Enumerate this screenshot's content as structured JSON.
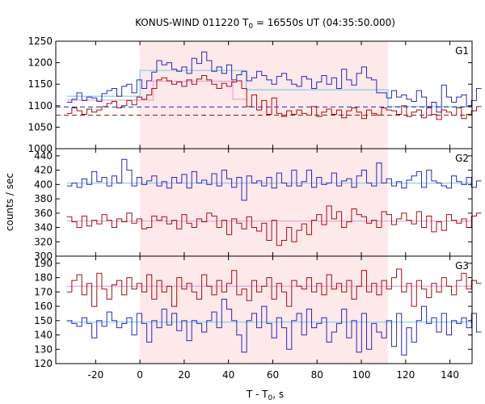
{
  "chart_data": {
    "type": "line",
    "title": "KONUS-WIND 011220 T",
    "title_sub": "0",
    "title_rest": " = 16550s UT (04:35:50.000)",
    "xlabel": "T - T",
    "xlabel_sub": "0",
    "xlabel_rest": ", s",
    "ylabel": "counts / sec",
    "xlim": [
      -38,
      150
    ],
    "xticks": [
      -20,
      0,
      20,
      40,
      60,
      80,
      100,
      120,
      140
    ],
    "highlight": {
      "x0": 0,
      "x1": 112
    },
    "colors": {
      "blue": "#2a2ab4",
      "red": "#a01010",
      "cyan": "#7fd0e8",
      "pink": "#f0a0d8",
      "shade": "#fde8ea"
    },
    "panels": [
      {
        "name": "G1",
        "ylim": [
          1000,
          1250
        ],
        "yticks": [
          1000,
          1050,
          1100,
          1150,
          1200,
          1250
        ],
        "blue_dashed_level": 1097,
        "red_dashed_level": 1078,
        "cyan_steps": [
          [
            -33,
            1122
          ],
          [
            0,
            1182
          ],
          [
            48,
            1137
          ],
          [
            112,
            1098
          ],
          [
            150,
            1098
          ]
        ],
        "pink_steps": [
          [
            -33,
            1113
          ],
          [
            6,
            1157
          ],
          [
            42,
            1115
          ],
          [
            44,
            1115
          ],
          [
            48,
            1115
          ]
        ],
        "series": [
          {
            "color": "blue",
            "values": [
              1108,
              1115,
              1130,
              1112,
              1120,
              1118,
              1110,
              1128,
              1135,
              1140,
              1122,
              1145,
              1150,
              1130,
              1160,
              1140,
              1158,
              1178,
              1205,
              1195,
              1200,
              1185,
              1180,
              1190,
              1175,
              1210,
              1198,
              1225,
              1205,
              1180,
              1190,
              1175,
              1195,
              1160,
              1172,
              1180,
              1158,
              1165,
              1180,
              1170,
              1160,
              1150,
              1168,
              1175,
              1160,
              1150,
              1145,
              1168,
              1162,
              1140,
              1155,
              1170,
              1150,
              1165,
              1140,
              1185,
              1160,
              1148,
              1175,
              1190,
              1165,
              1160,
              1130,
              1130,
              1118,
              1135,
              1120,
              1125,
              1115,
              1110,
              1135,
              1120,
              1098,
              1108,
              1085,
              1148,
              1120,
              1108,
              1120,
              1125,
              1098,
              1112,
              1140
            ]
          },
          {
            "color": "red",
            "values": [
              1082,
              1095,
              1088,
              1080,
              1092,
              1085,
              1090,
              1098,
              1105,
              1110,
              1095,
              1100,
              1112,
              1102,
              1120,
              1115,
              1125,
              1140,
              1160,
              1165,
              1158,
              1150,
              1155,
              1145,
              1160,
              1150,
              1162,
              1170,
              1160,
              1150,
              1140,
              1152,
              1145,
              1155,
              1158,
              1140,
              1098,
              1125,
              1090,
              1112,
              1080,
              1118,
              1082,
              1075,
              1088,
              1080,
              1090,
              1082,
              1078,
              1098,
              1075,
              1085,
              1092,
              1080,
              1090,
              1072,
              1088,
              1095,
              1085,
              1070,
              1090,
              1082,
              1078,
              1095,
              1090,
              1088,
              1080,
              1100,
              1075,
              1085,
              1090,
              1072,
              1095,
              1080,
              1068,
              1090,
              1085,
              1078,
              1095,
              1070,
              1080,
              1088,
              1098
            ]
          }
        ]
      },
      {
        "name": "G2",
        "ylim": [
          300,
          450
        ],
        "yticks": [
          300,
          320,
          340,
          360,
          380,
          400,
          420,
          440
        ],
        "cyan_steps": [
          [
            -33,
            402
          ],
          [
            150,
            402
          ]
        ],
        "pink_steps": [
          [
            -33,
            349
          ],
          [
            150,
            349
          ]
        ],
        "series": [
          {
            "color": "blue",
            "values": [
              398,
              402,
              396,
              408,
              400,
              418,
              404,
              410,
              398,
              412,
              402,
              435,
              420,
              398,
              410,
              400,
              405,
              412,
              398,
              404,
              395,
              410,
              402,
              414,
              395,
              418,
              402,
              406,
              400,
              415,
              398,
              420,
              408,
              396,
              410,
              378,
              412,
              402,
              405,
              398,
              410,
              395,
              416,
              402,
              398,
              420,
              398,
              404,
              420,
              396,
              410,
              400,
              402,
              416,
              398,
              405,
              408,
              396,
              412,
              420,
              402,
              398,
              430,
              402,
              408,
              398,
              404,
              395,
              406,
              412,
              418,
              396,
              420,
              405,
              402,
              398,
              395,
              412,
              404,
              400,
              410,
              396,
              405
            ]
          },
          {
            "color": "red",
            "values": [
              355,
              348,
              340,
              356,
              342,
              350,
              345,
              358,
              350,
              340,
              352,
              348,
              360,
              346,
              352,
              338,
              340,
              356,
              350,
              355,
              345,
              350,
              338,
              358,
              346,
              340,
              352,
              348,
              360,
              356,
              340,
              350,
              330,
              352,
              346,
              338,
              355,
              340,
              335,
              346,
              322,
              350,
              315,
              322,
              340,
              320,
              336,
              345,
              330,
              350,
              358,
              344,
              370,
              352,
              362,
              340,
              348,
              366,
              358,
              355,
              346,
              350,
              340,
              362,
              358,
              344,
              352,
              360,
              350,
              345,
              362,
              340,
              356,
              334,
              348,
              336,
              358,
              350,
              346,
              352,
              340,
              356,
              360
            ]
          }
        ]
      },
      {
        "name": "G3",
        "ylim": [
          120,
          195
        ],
        "yticks": [
          120,
          130,
          140,
          150,
          160,
          170,
          180,
          190
        ],
        "cyan_steps": [
          [
            -33,
            149
          ],
          [
            150,
            149
          ]
        ],
        "pink_steps": [
          [
            -33,
            174
          ],
          [
            150,
            174
          ]
        ],
        "series": [
          {
            "color": "blue",
            "values": [
              150,
              148,
              146,
              152,
              148,
              138,
              150,
              146,
              156,
              150,
              145,
              148,
              152,
              140,
              155,
              148,
              135,
              150,
              145,
              158,
              147,
              155,
              143,
              150,
              136,
              150,
              148,
              142,
              150,
              156,
              145,
              165,
              158,
              150,
              140,
              128,
              150,
              155,
              145,
              160,
              148,
              138,
              152,
              145,
              130,
              150,
              155,
              140,
              158,
              145,
              148,
              152,
              135,
              142,
              148,
              158,
              138,
              150,
              128,
              155,
              130,
              148,
              142,
              138,
              150,
              132,
              155,
              126,
              145,
              135,
              150,
              160,
              148,
              152,
              142,
              155,
              140,
              150,
              148,
              152,
              145,
              155,
              142
            ]
          },
          {
            "color": "red",
            "values": [
              170,
              178,
              182,
              168,
              176,
              160,
              183,
              172,
              165,
              175,
              178,
              168,
              180,
              172,
              176,
              170,
              182,
              165,
              178,
              170,
              174,
              160,
              180,
              172,
              176,
              170,
              165,
              182,
              174,
              168,
              178,
              170,
              176,
              185,
              168,
              172,
              164,
              178,
              170,
              174,
              180,
              165,
              176,
              170,
              160,
              178,
              174,
              172,
              180,
              170,
              176,
              168,
              182,
              172,
              176,
              170,
              178,
              165,
              174,
              185,
              170,
              176,
              168,
              178,
              172,
              180,
              186,
              170,
              176,
              160,
              178,
              172,
              166,
              176,
              170,
              180,
              174,
              168,
              178,
              183,
              172,
              178,
              176
            ]
          }
        ]
      }
    ]
  }
}
